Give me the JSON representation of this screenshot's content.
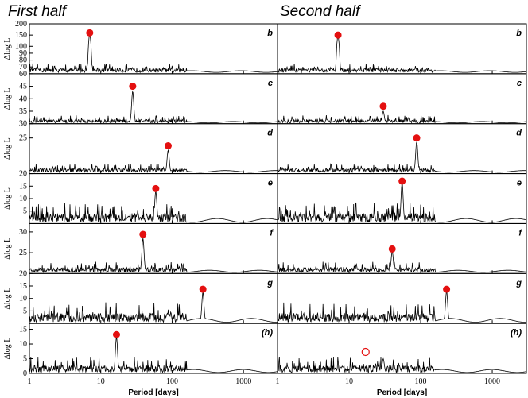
{
  "chart_data": {
    "type": "line",
    "titles": [
      "First half",
      "Second half"
    ],
    "xlabel": "Period [days]",
    "ylabel": "Δlog L",
    "xscale": "log",
    "xlim": [
      1,
      3000
    ],
    "xticks": [
      1,
      10,
      100,
      1000
    ],
    "rows": [
      {
        "label": "b",
        "ylim": [
          60,
          200
        ],
        "yticks": [
          60,
          70,
          80,
          90,
          100,
          150,
          200
        ],
        "ytick_labels": [
          "60",
          "70",
          "80",
          "90",
          "100",
          "150",
          "200"
        ],
        "scale": "broken",
        "baseline": 62,
        "noise": 2
      },
      {
        "label": "c",
        "ylim": [
          30,
          50
        ],
        "yticks": [
          30,
          35,
          40,
          45
        ],
        "ytick_labels": [
          "30",
          "35",
          "40",
          "45"
        ],
        "baseline": 30.3,
        "noise": 1.2
      },
      {
        "label": "d",
        "ylim": [
          20,
          27
        ],
        "yticks": [
          20,
          25
        ],
        "ytick_labels": [
          "20",
          "25"
        ],
        "baseline": 20.2,
        "noise": 1.3
      },
      {
        "label": "e",
        "ylim": [
          0,
          20
        ],
        "yticks": [
          5,
          10,
          15
        ],
        "ytick_labels": [
          "5",
          "10",
          "15"
        ],
        "baseline": 0.5,
        "noise": 3
      },
      {
        "label": "f",
        "ylim": [
          20,
          32
        ],
        "yticks": [
          20,
          25,
          30
        ],
        "ytick_labels": [
          "20",
          "25",
          "30"
        ],
        "baseline": 20.3,
        "noise": 1.6
      },
      {
        "label": "g",
        "ylim": [
          0,
          20
        ],
        "yticks": [
          5,
          10,
          15
        ],
        "ytick_labels": [
          "5",
          "10",
          "15"
        ],
        "baseline": 0.5,
        "noise": 3
      },
      {
        "label": "(h)",
        "ylim": [
          0,
          17
        ],
        "yticks": [
          0,
          5,
          10,
          15
        ],
        "ytick_labels": [
          "0",
          "5",
          "10",
          "15"
        ],
        "baseline": 0.3,
        "noise": 2.4
      }
    ],
    "series": [
      {
        "panel": "First half",
        "markers": [
          {
            "row": "b",
            "x": 7,
            "y": 160,
            "style": "filled"
          },
          {
            "row": "c",
            "x": 28,
            "y": 45,
            "style": "filled"
          },
          {
            "row": "d",
            "x": 88,
            "y": 23.9,
            "style": "filled"
          },
          {
            "row": "e",
            "x": 59,
            "y": 14,
            "style": "filled"
          },
          {
            "row": "f",
            "x": 39,
            "y": 29.4,
            "style": "filled"
          },
          {
            "row": "g",
            "x": 270,
            "y": 13.7,
            "style": "filled"
          },
          {
            "row": "(h)",
            "x": 16.6,
            "y": 13.2,
            "style": "filled"
          }
        ],
        "peaks": [
          {
            "row": "b",
            "x": 7,
            "y": 155
          },
          {
            "row": "c",
            "x": 28,
            "y": 43
          },
          {
            "row": "d",
            "x": 88,
            "y": 23.3
          },
          {
            "row": "e",
            "x": 59,
            "y": 13
          },
          {
            "row": "f",
            "x": 39,
            "y": 28.5
          },
          {
            "row": "g",
            "x": 270,
            "y": 12.5
          },
          {
            "row": "(h)",
            "x": 16.6,
            "y": 12.5
          }
        ]
      },
      {
        "panel": "Second half",
        "markers": [
          {
            "row": "b",
            "x": 7,
            "y": 150,
            "style": "filled"
          },
          {
            "row": "c",
            "x": 30,
            "y": 37,
            "style": "filled"
          },
          {
            "row": "d",
            "x": 88,
            "y": 25,
            "style": "filled"
          },
          {
            "row": "e",
            "x": 55,
            "y": 17,
            "style": "filled"
          },
          {
            "row": "f",
            "x": 40,
            "y": 25.9,
            "style": "filled"
          },
          {
            "row": "g",
            "x": 230,
            "y": 13.7,
            "style": "filled"
          },
          {
            "row": "(h)",
            "x": 17,
            "y": 7.3,
            "style": "open"
          }
        ],
        "peaks": [
          {
            "row": "b",
            "x": 7,
            "y": 145
          },
          {
            "row": "c",
            "x": 30,
            "y": 35
          },
          {
            "row": "d",
            "x": 88,
            "y": 24.5
          },
          {
            "row": "e",
            "x": 55,
            "y": 16.5
          },
          {
            "row": "f",
            "x": 40,
            "y": 25.3
          },
          {
            "row": "g",
            "x": 230,
            "y": 13
          },
          {
            "row": "(h)",
            "x": 30,
            "y": 5
          }
        ]
      }
    ],
    "marker_color": "#e41010",
    "line_color": "#000000",
    "grid": false
  }
}
